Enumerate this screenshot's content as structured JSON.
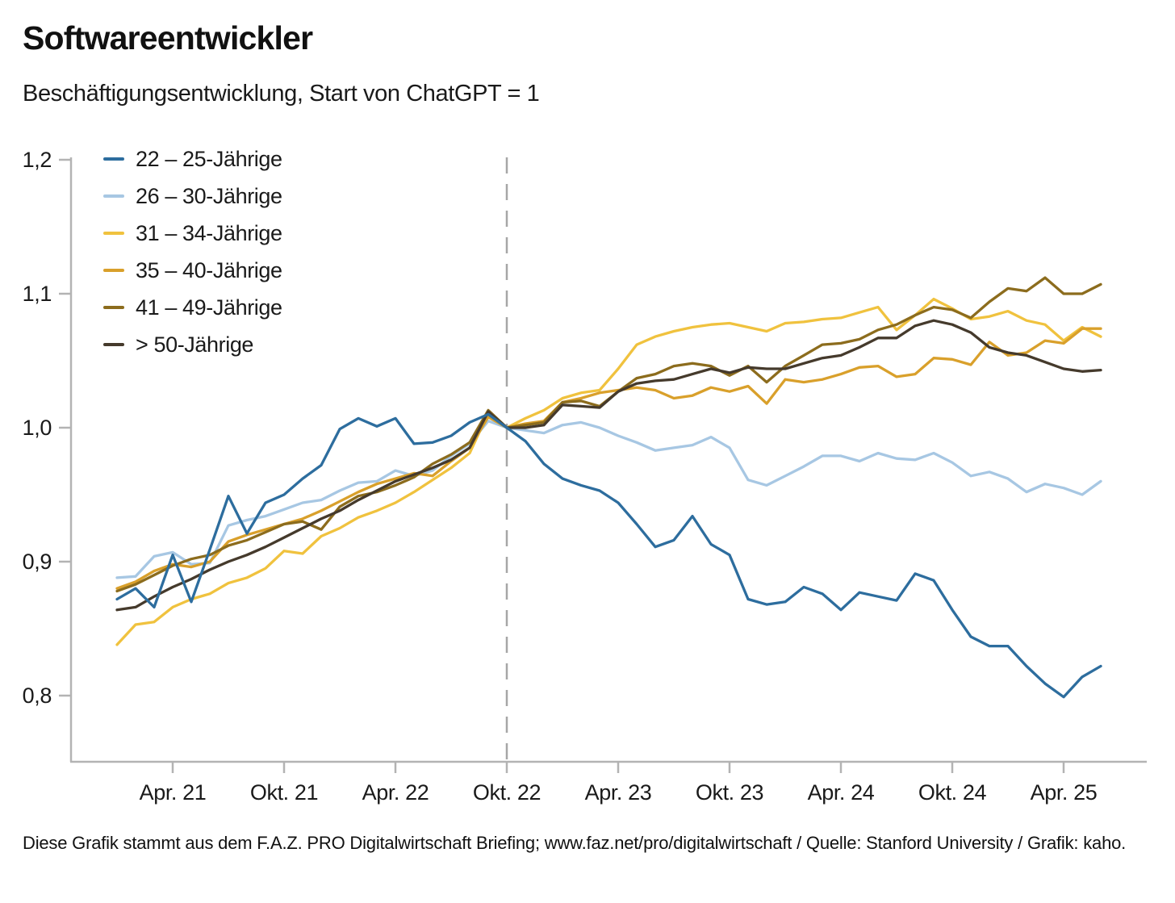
{
  "title": "Softwareentwickler",
  "subtitle": "Beschäftigungsentwicklung, Start von ChatGPT = 1",
  "footer": "Diese Grafik stammt aus dem F.A.Z. PRO Digitalwirtschaft Briefing; www.faz.net/pro/digitalwirtschaft / Quelle: Stanford University / Grafik: kaho.",
  "colors": {
    "axis": "#b3b3b3",
    "event_line": "#a6a6a6",
    "text": "#1a1a1a"
  },
  "chart_data": {
    "type": "line",
    "title": "Softwareentwickler",
    "subtitle": "Beschäftigungsentwicklung, Start von ChatGPT = 1",
    "normalization": "Okt. 22 (Start von ChatGPT) = 1",
    "x_range": {
      "start": "Jan. 21",
      "end": "Jun. 25",
      "interval": "monatlich",
      "points_per_series": 54
    },
    "grid": "off",
    "legend_position": "top-left, inside plot",
    "y_axis": {
      "ticks": [
        {
          "label": "1,2",
          "value": 1.2
        },
        {
          "label": "1,1",
          "value": 1.1
        },
        {
          "label": "1,0",
          "value": 1.0
        },
        {
          "label": "0,9",
          "value": 0.9
        },
        {
          "label": "0,8",
          "value": 0.8
        }
      ],
      "ylim": [
        0.75,
        1.205
      ]
    },
    "x_axis": {
      "ticks": [
        {
          "label": "Apr. 21",
          "month_index": 3
        },
        {
          "label": "Okt. 21",
          "month_index": 9
        },
        {
          "label": "Apr. 22",
          "month_index": 15
        },
        {
          "label": "Okt. 22",
          "month_index": 21
        },
        {
          "label": "Apr. 23",
          "month_index": 27
        },
        {
          "label": "Okt. 23",
          "month_index": 33
        },
        {
          "label": "Apr. 24",
          "month_index": 39
        },
        {
          "label": "Okt. 24",
          "month_index": 45
        },
        {
          "label": "Apr. 25",
          "month_index": 51
        }
      ]
    },
    "event_line": {
      "month_index": 21,
      "at_tick": "Okt. 22",
      "style": "dashed",
      "meaning": "Start von ChatGPT"
    },
    "series": [
      {
        "id": "22-25",
        "name": "22 – 25-Jährige",
        "color": "#2d6d9e",
        "values": [
          0.872,
          0.88,
          0.866,
          0.905,
          0.87,
          0.909,
          0.949,
          0.921,
          0.944,
          0.95,
          0.962,
          0.972,
          0.999,
          1.007,
          1.001,
          1.007,
          0.988,
          0.989,
          0.994,
          1.004,
          1.01,
          1.0,
          0.99,
          0.973,
          0.962,
          0.957,
          0.953,
          0.944,
          0.928,
          0.911,
          0.916,
          0.934,
          0.913,
          0.905,
          0.872,
          0.868,
          0.87,
          0.881,
          0.876,
          0.864,
          0.877,
          0.874,
          0.871,
          0.891,
          0.886,
          0.864,
          0.844,
          0.837,
          0.837,
          0.822,
          0.809,
          0.799,
          0.814,
          0.822
        ]
      },
      {
        "id": "26-30",
        "name": "26 – 30-Jährige",
        "color": "#a7c7e3",
        "values": [
          0.888,
          0.889,
          0.904,
          0.907,
          0.898,
          0.899,
          0.927,
          0.931,
          0.934,
          0.939,
          0.944,
          0.946,
          0.953,
          0.959,
          0.96,
          0.968,
          0.964,
          0.968,
          0.979,
          0.988,
          1.005,
          1.0,
          0.998,
          0.996,
          1.002,
          1.004,
          1.0,
          0.994,
          0.989,
          0.983,
          0.985,
          0.987,
          0.993,
          0.985,
          0.961,
          0.957,
          0.964,
          0.971,
          0.979,
          0.979,
          0.975,
          0.981,
          0.977,
          0.976,
          0.981,
          0.974,
          0.964,
          0.967,
          0.962,
          0.952,
          0.958,
          0.955,
          0.95,
          0.96
        ]
      },
      {
        "id": "31-34",
        "name": "31 – 34-Jährige",
        "color": "#f0c23e",
        "values": [
          0.838,
          0.853,
          0.855,
          0.866,
          0.872,
          0.876,
          0.884,
          0.888,
          0.895,
          0.908,
          0.906,
          0.919,
          0.925,
          0.933,
          0.938,
          0.944,
          0.952,
          0.961,
          0.97,
          0.981,
          1.011,
          1.0,
          1.007,
          1.013,
          1.022,
          1.026,
          1.028,
          1.044,
          1.062,
          1.068,
          1.072,
          1.075,
          1.077,
          1.078,
          1.075,
          1.072,
          1.078,
          1.079,
          1.081,
          1.082,
          1.086,
          1.09,
          1.073,
          1.084,
          1.096,
          1.089,
          1.081,
          1.083,
          1.087,
          1.08,
          1.077,
          1.065,
          1.075,
          1.068
        ]
      },
      {
        "id": "35-40",
        "name": "35 – 40-Jährige",
        "color": "#d9a02b",
        "values": [
          0.88,
          0.885,
          0.893,
          0.898,
          0.896,
          0.9,
          0.915,
          0.92,
          0.924,
          0.928,
          0.932,
          0.938,
          0.945,
          0.952,
          0.958,
          0.962,
          0.966,
          0.964,
          0.975,
          0.985,
          1.008,
          1.0,
          1.003,
          1.005,
          1.019,
          1.022,
          1.026,
          1.028,
          1.03,
          1.028,
          1.022,
          1.024,
          1.03,
          1.027,
          1.031,
          1.018,
          1.036,
          1.034,
          1.036,
          1.04,
          1.045,
          1.046,
          1.038,
          1.04,
          1.052,
          1.051,
          1.047,
          1.064,
          1.054,
          1.056,
          1.065,
          1.063,
          1.074,
          1.074
        ]
      },
      {
        "id": "41-49",
        "name": "41 – 49-Jährige",
        "color": "#8c6c1d",
        "values": [
          0.878,
          0.883,
          0.89,
          0.897,
          0.902,
          0.905,
          0.912,
          0.916,
          0.922,
          0.928,
          0.93,
          0.924,
          0.941,
          0.949,
          0.952,
          0.957,
          0.963,
          0.973,
          0.98,
          0.989,
          1.013,
          1.0,
          1.002,
          1.004,
          1.019,
          1.02,
          1.016,
          1.027,
          1.037,
          1.04,
          1.046,
          1.048,
          1.046,
          1.039,
          1.046,
          1.034,
          1.046,
          1.054,
          1.062,
          1.063,
          1.066,
          1.073,
          1.077,
          1.084,
          1.09,
          1.088,
          1.082,
          1.094,
          1.104,
          1.102,
          1.112,
          1.1,
          1.1,
          1.107
        ]
      },
      {
        "id": "50plus",
        "name": "> 50-Jährige",
        "color": "#453a2c",
        "values": [
          0.864,
          0.866,
          0.874,
          0.881,
          0.887,
          0.894,
          0.9,
          0.905,
          0.911,
          0.918,
          0.925,
          0.932,
          0.938,
          0.946,
          0.953,
          0.96,
          0.965,
          0.97,
          0.976,
          0.985,
          1.012,
          1.0,
          1.0,
          1.002,
          1.017,
          1.016,
          1.015,
          1.027,
          1.033,
          1.035,
          1.036,
          1.04,
          1.044,
          1.041,
          1.045,
          1.044,
          1.044,
          1.048,
          1.052,
          1.054,
          1.06,
          1.067,
          1.067,
          1.076,
          1.08,
          1.077,
          1.071,
          1.06,
          1.056,
          1.054,
          1.049,
          1.044,
          1.042,
          1.043
        ]
      }
    ]
  }
}
